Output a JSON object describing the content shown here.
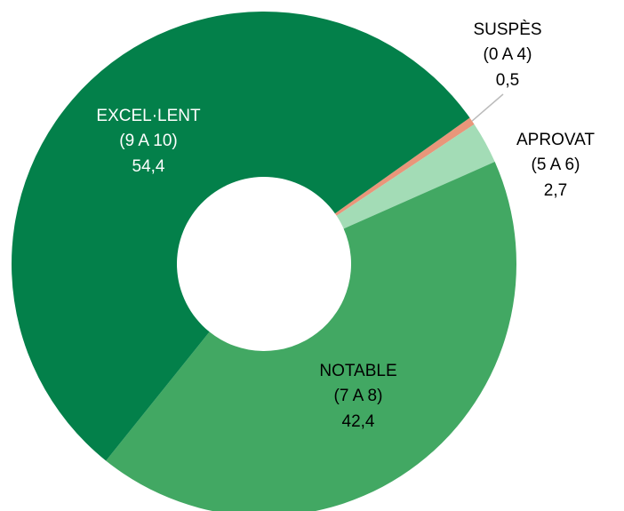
{
  "chart_data": {
    "type": "donut",
    "categories": [
      "SUSPÈS",
      "APROVAT",
      "NOTABLE",
      "EXCEL·LENT"
    ],
    "ranges": [
      "(0 A 4)",
      "(5 A 6)",
      "(7 A 8)",
      "(9 A 10)"
    ],
    "values": [
      0.5,
      2.7,
      42.4,
      54.4
    ],
    "value_labels": [
      "0,5",
      "2,7",
      "42,4",
      "54,4"
    ],
    "colors": [
      "#e9967a",
      "#a3dcb6",
      "#42a863",
      "#03804a"
    ]
  }
}
